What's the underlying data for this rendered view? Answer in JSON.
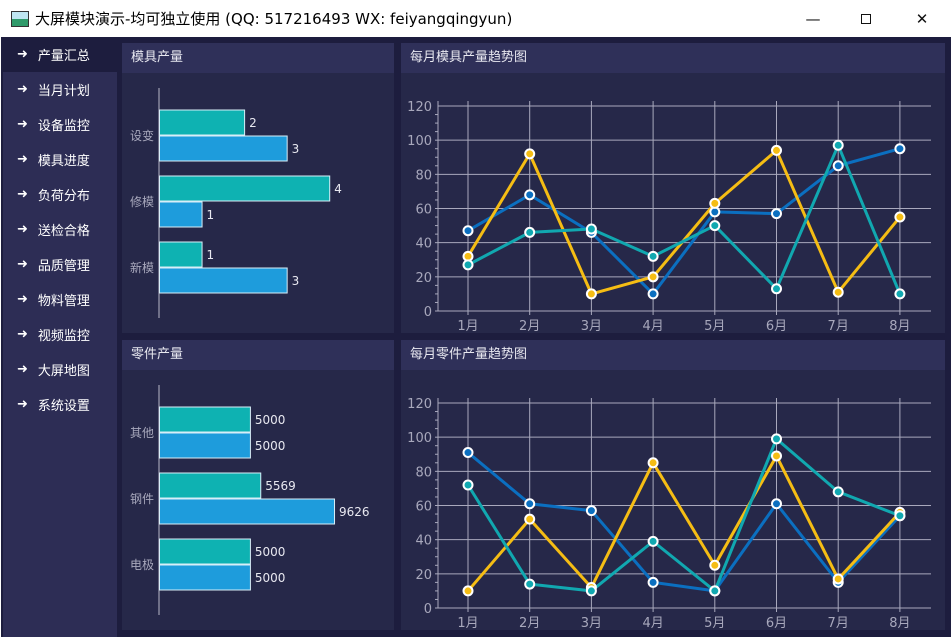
{
  "window": {
    "title": "大屏模块演示-均可独立使用 (QQ: 517216493  WX: feiyangqingyun)",
    "minimize_icon": "minimize-icon",
    "maximize_icon": "maximize-icon",
    "close_icon": "close-icon"
  },
  "sidebar": {
    "items": [
      {
        "label": "产量汇总",
        "selected": true
      },
      {
        "label": "当月计划"
      },
      {
        "label": "设备监控"
      },
      {
        "label": "模具进度"
      },
      {
        "label": "负荷分布"
      },
      {
        "label": "送检合格"
      },
      {
        "label": "品质管理"
      },
      {
        "label": "物料管理"
      },
      {
        "label": "视频监控"
      },
      {
        "label": "大屏地图"
      },
      {
        "label": "系统设置"
      }
    ]
  },
  "panels": {
    "mold_output": "模具产量",
    "mold_trend": "每月模具产量趋势图",
    "part_output": "零件产量",
    "part_trend": "每月零件产量趋势图"
  },
  "colors": {
    "teal": "#0eb2b2",
    "blue": "#1e9cdc",
    "line_blue": "#0b6fc0",
    "line_yellow": "#f5bd14",
    "line_teal": "#11a8b0"
  },
  "chart_data": [
    {
      "type": "bar",
      "orientation": "horizontal",
      "categories": [
        "设变",
        "修模",
        "新模"
      ],
      "series": [
        {
          "values": [
            2,
            4,
            1
          ]
        },
        {
          "values": [
            3,
            1,
            3
          ]
        }
      ],
      "xlim": [
        0,
        4.7
      ]
    },
    {
      "type": "line",
      "categories": [
        "1月",
        "2月",
        "3月",
        "4月",
        "5月",
        "6月",
        "7月",
        "8月"
      ],
      "ylim": [
        0,
        120
      ],
      "yticks": [
        0,
        20,
        40,
        60,
        80,
        100,
        120
      ],
      "grid": true,
      "series": [
        {
          "values": [
            47,
            68,
            46,
            10,
            58,
            57,
            85,
            95
          ]
        },
        {
          "values": [
            32,
            92,
            10,
            20,
            63,
            94,
            11,
            55
          ]
        },
        {
          "values": [
            27,
            46,
            48,
            32,
            50,
            13,
            97,
            10
          ]
        }
      ]
    },
    {
      "type": "bar",
      "orientation": "horizontal",
      "categories": [
        "其他",
        "钢件",
        "电极"
      ],
      "series": [
        {
          "values": [
            5000,
            5569,
            5000
          ]
        },
        {
          "values": [
            5000,
            9626,
            5000
          ]
        }
      ],
      "xlim": [
        0,
        11000
      ]
    },
    {
      "type": "line",
      "categories": [
        "1月",
        "2月",
        "3月",
        "4月",
        "5月",
        "6月",
        "7月",
        "8月"
      ],
      "ylim": [
        0,
        120
      ],
      "yticks": [
        0,
        20,
        40,
        60,
        80,
        100,
        120
      ],
      "grid": true,
      "series": [
        {
          "values": [
            91,
            61,
            57,
            15,
            10,
            61,
            15,
            54
          ]
        },
        {
          "values": [
            10,
            52,
            12,
            85,
            25,
            89,
            17,
            56
          ]
        },
        {
          "values": [
            72,
            14,
            10,
            39,
            10,
            99,
            68,
            54
          ]
        }
      ]
    }
  ]
}
